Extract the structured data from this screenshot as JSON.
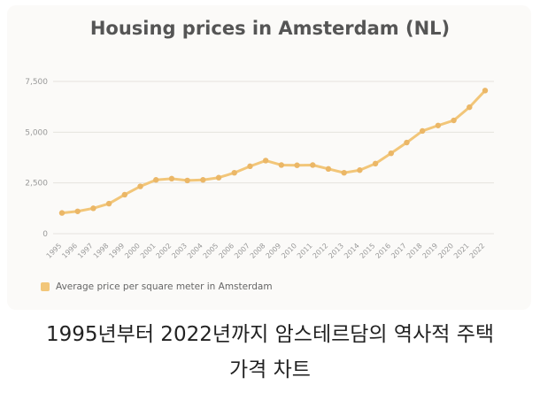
{
  "chart_data": {
    "type": "line",
    "title": "Housing prices in Amsterdam (NL)",
    "xlabel": "",
    "ylabel": "",
    "x": [
      "1995",
      "1996",
      "1997",
      "1998",
      "1999",
      "2000",
      "2001",
      "2002",
      "2003",
      "2004",
      "2005",
      "2006",
      "2007",
      "2008",
      "2009",
      "2010",
      "2011",
      "2012",
      "2013",
      "2014",
      "2015",
      "2016",
      "2017",
      "2018",
      "2019",
      "2020",
      "2021",
      "2022"
    ],
    "series": [
      {
        "name": "Average price per square meter in Amsterdam",
        "values": [
          1020,
          1100,
          1250,
          1480,
          1920,
          2330,
          2650,
          2710,
          2620,
          2650,
          2760,
          3000,
          3320,
          3600,
          3380,
          3370,
          3380,
          3190,
          3000,
          3130,
          3450,
          3960,
          4490,
          5060,
          5330,
          5580,
          6230,
          7050
        ]
      }
    ],
    "yticks": [
      0,
      2500,
      5000,
      7500
    ],
    "ytick_labels": [
      "0",
      "2,500",
      "5,000",
      "7,500"
    ],
    "ylim": [
      0,
      7500
    ],
    "grid": true,
    "legend_position": "bottom-left",
    "line_color": "#f2c679",
    "marker_color": "#ebb767"
  },
  "caption": {
    "line1": "1995년부터 2022년까지 암스테르담의 역사적 주택",
    "line2": "가격 차트"
  },
  "colors": {
    "title": "#555555",
    "grid": "#e6e3de",
    "tick_label": "#999999"
  }
}
